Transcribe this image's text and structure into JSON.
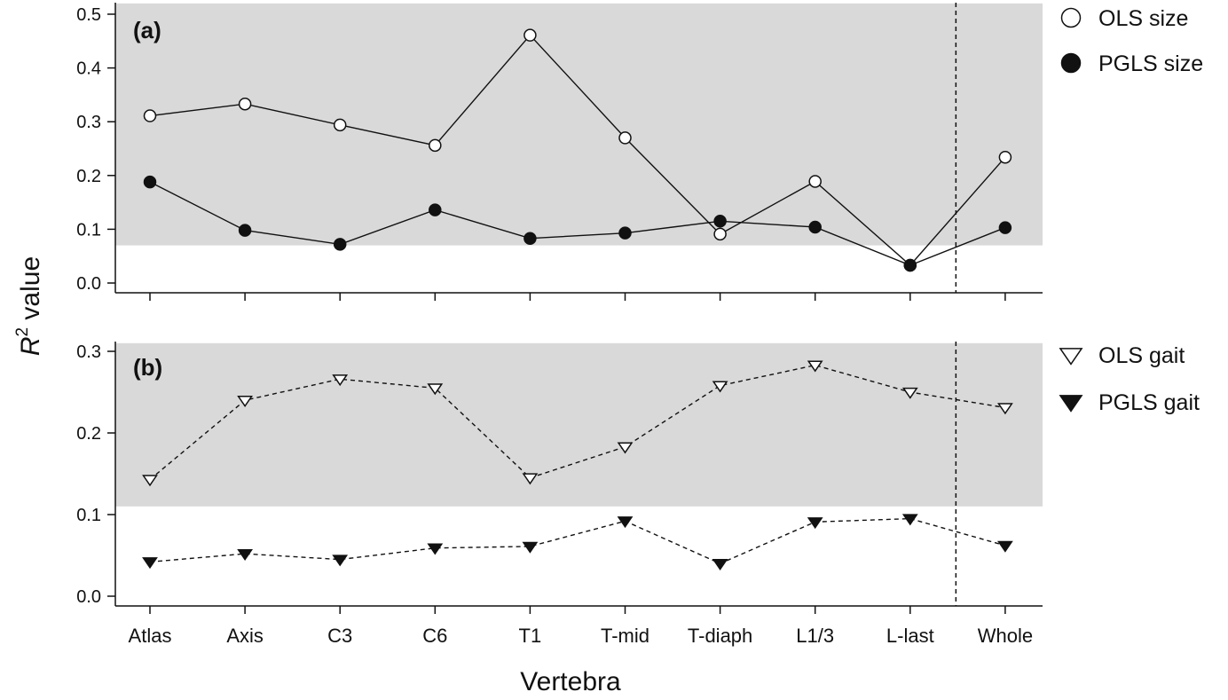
{
  "chart_data": [
    {
      "type": "line",
      "panel_label": "(a)",
      "categories": [
        "Atlas",
        "Axis",
        "C3",
        "C6",
        "T1",
        "T-mid",
        "T-diaph",
        "L1/3",
        "L-last",
        "Whole"
      ],
      "series": [
        {
          "name": "OLS size",
          "marker": "open-circle",
          "line_style": "solid",
          "values": [
            0.311,
            0.333,
            0.294,
            0.256,
            0.461,
            0.27,
            0.091,
            0.189,
            0.033,
            0.234
          ]
        },
        {
          "name": "PGLS size",
          "marker": "filled-circle",
          "line_style": "solid",
          "values": [
            0.188,
            0.098,
            0.072,
            0.136,
            0.083,
            0.093,
            0.115,
            0.104,
            0.033,
            0.103
          ]
        }
      ],
      "ylim": [
        0.0,
        0.5
      ],
      "yticks": [
        "0.0",
        "0.1",
        "0.2",
        "0.3",
        "0.4",
        "0.5"
      ],
      "shaded_band": [
        0.07,
        0.52
      ],
      "divider_after_category": "L-last",
      "legend_position": "right",
      "grid": false
    },
    {
      "type": "line",
      "panel_label": "(b)",
      "categories": [
        "Atlas",
        "Axis",
        "C3",
        "C6",
        "T1",
        "T-mid",
        "T-diaph",
        "L1/3",
        "L-last",
        "Whole"
      ],
      "series": [
        {
          "name": "OLS gait",
          "marker": "open-triangle-down",
          "line_style": "dashed",
          "values": [
            0.143,
            0.24,
            0.266,
            0.255,
            0.145,
            0.183,
            0.258,
            0.283,
            0.25,
            0.231
          ]
        },
        {
          "name": "PGLS gait",
          "marker": "filled-triangle-down",
          "line_style": "dashed",
          "values": [
            0.042,
            0.052,
            0.045,
            0.059,
            0.061,
            0.092,
            0.04,
            0.091,
            0.095,
            0.062
          ]
        }
      ],
      "ylim": [
        0.0,
        0.3
      ],
      "yticks": [
        "0.0",
        "0.1",
        "0.2",
        "0.3"
      ],
      "shaded_band": [
        0.11,
        0.31
      ],
      "divider_after_category": "L-last",
      "legend_position": "right",
      "grid": false
    }
  ],
  "labels": {
    "ylabel_symbol": "R",
    "ylabel_superscript": "2",
    "ylabel_rest": " value",
    "xlabel": "Vertebra"
  },
  "colors": {
    "band": "#d9d9d9",
    "ink": "#111111",
    "open_fill": "#ffffff"
  }
}
